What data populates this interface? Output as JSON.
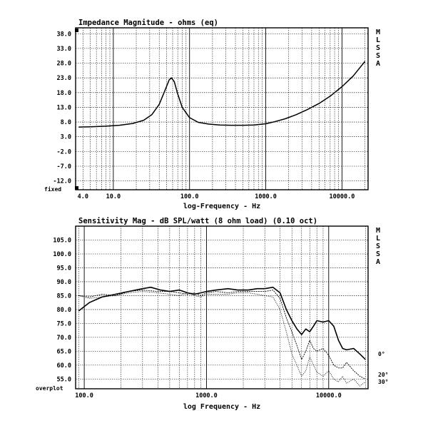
{
  "chart_data": [
    {
      "type": "line",
      "title": "Impedance Magnitude - ohms (eq)",
      "xlabel": "log-Frequency - Hz",
      "ylabel": "",
      "xscale": "log",
      "xlim": [
        3.2,
        22000
      ],
      "ylim": [
        -15,
        40
      ],
      "grid": true,
      "yticks": [
        "38.0",
        "33.0",
        "28.0",
        "23.0",
        "18.0",
        "13.0",
        "8.0",
        "3.0",
        "-2.0",
        "-7.0",
        "-12.0"
      ],
      "xticks": [
        "4.0",
        "10.0",
        "100.0",
        "1000.0",
        "10000.0"
      ],
      "corner_label": "fixed",
      "side_label": [
        "M",
        "L",
        "S",
        "S",
        "A"
      ],
      "series": [
        {
          "x": [
            3.5,
            5,
            8,
            12,
            18,
            25,
            32,
            40,
            48,
            54,
            58,
            63,
            70,
            80,
            100,
            130,
            180,
            250,
            350,
            500,
            700,
            1000,
            1300,
            1800,
            2500,
            3500,
            5000,
            7000,
            10000,
            14000,
            20000
          ],
          "y": [
            6.3,
            6.4,
            6.6,
            6.9,
            7.5,
            8.6,
            10.5,
            14,
            19,
            22.3,
            23,
            21.7,
            17.5,
            13,
            9.5,
            7.9,
            7.3,
            7.0,
            6.9,
            6.9,
            7.0,
            7.4,
            8.1,
            9.1,
            10.5,
            12.2,
            14.3,
            16.8,
            20.0,
            23.6,
            28.6
          ]
        }
      ]
    },
    {
      "type": "line",
      "title": "Sensitivity Mag - dB SPL/watt (8 ohm load) (0.10 oct)",
      "xlabel": "log Frequency - Hz",
      "ylabel": "",
      "xscale": "log",
      "xlim": [
        85,
        21000
      ],
      "ylim": [
        51.5,
        110
      ],
      "grid": true,
      "yticks": [
        "105.0",
        "100.0",
        "95.0",
        "90.0",
        "85.0",
        "80.0",
        "75.0",
        "70.0",
        "65.0",
        "60.0",
        "55.0"
      ],
      "xticks": [
        "100.0",
        "1000.0",
        "10000.0"
      ],
      "corner_label": "overplot",
      "side_label": [
        "M",
        "L",
        "S",
        "S",
        "A"
      ],
      "series": [
        {
          "name": "0°",
          "x": [
            90,
            110,
            140,
            180,
            230,
            300,
            350,
            420,
            500,
            600,
            700,
            800,
            900,
            1000,
            1200,
            1500,
            1800,
            2200,
            2600,
            3000,
            3500,
            4000,
            4500,
            5000,
            5500,
            6000,
            6500,
            7000,
            7500,
            8000,
            9000,
            10000,
            11000,
            12000,
            13000,
            14000,
            16000,
            18000,
            20000
          ],
          "y": [
            79.5,
            82.5,
            84.5,
            85.5,
            86.5,
            87.5,
            88,
            87,
            86.5,
            87,
            86,
            85.5,
            86,
            86.5,
            87,
            87.5,
            87,
            87,
            87.5,
            87.5,
            88,
            86,
            80,
            76,
            73,
            71,
            73,
            72,
            74,
            76,
            75.5,
            76,
            74,
            69,
            66,
            65.5,
            66,
            64,
            62
          ]
        },
        {
          "name": "20°",
          "x": [
            90,
            110,
            140,
            180,
            230,
            300,
            400,
            500,
            600,
            700,
            800,
            900,
            1000,
            1200,
            1500,
            1800,
            2200,
            2600,
            3000,
            3500,
            4000,
            4500,
            5000,
            5500,
            6000,
            6500,
            7000,
            7500,
            8000,
            9000,
            10000,
            11000,
            12000,
            13000,
            14000,
            16000,
            18000,
            20000
          ],
          "y": [
            85,
            84.5,
            85.5,
            85,
            86.5,
            87,
            86.5,
            86.5,
            86,
            85.5,
            86,
            85,
            86,
            86.5,
            86,
            86.5,
            86.5,
            86.5,
            86.5,
            87,
            84,
            77,
            72,
            67,
            62,
            65,
            69,
            66,
            65,
            66,
            63.5,
            60,
            59,
            59,
            61,
            58,
            56,
            55
          ]
        },
        {
          "name": "30°",
          "x": [
            90,
            110,
            140,
            180,
            230,
            300,
            400,
            500,
            600,
            700,
            800,
            900,
            1000,
            1200,
            1500,
            1800,
            2200,
            2600,
            3000,
            3500,
            4000,
            4500,
            5000,
            5500,
            6000,
            6500,
            7000,
            7500,
            8000,
            9000,
            10000,
            11000,
            12000,
            13000,
            14000,
            16000,
            18000,
            20000
          ],
          "y": [
            85,
            84,
            84.5,
            85,
            86,
            86.5,
            86,
            85.5,
            85,
            86,
            85,
            84.5,
            85.5,
            85.5,
            85.5,
            86,
            86,
            85.5,
            85,
            84.5,
            80,
            72,
            64,
            60,
            56,
            58,
            63,
            60,
            57.5,
            56,
            58,
            55,
            54,
            56,
            53.5,
            55,
            52.5,
            54
          ]
        }
      ],
      "legend_labels": [
        "0°",
        "20°",
        "30°"
      ]
    }
  ]
}
